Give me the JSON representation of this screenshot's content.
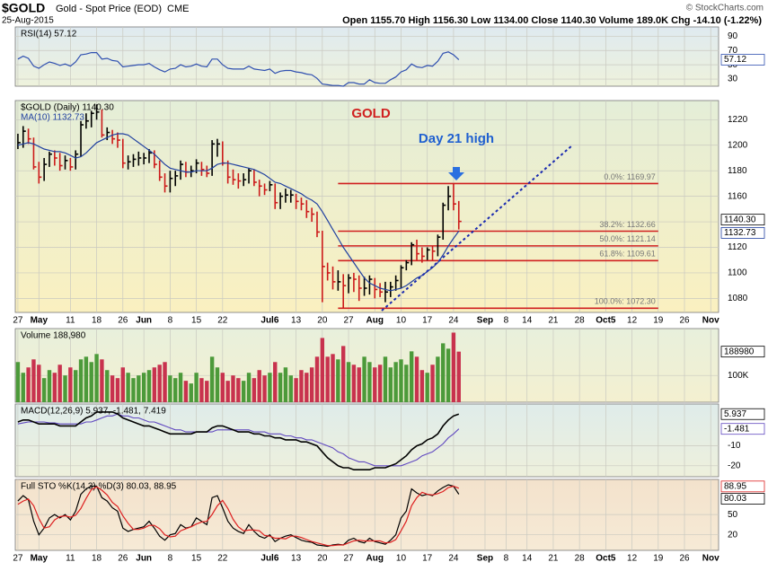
{
  "header": {
    "symbol": "$GOLD",
    "name": "Gold - Spot Price (EOD)",
    "exchange": "CME",
    "date": "25-Aug-2015",
    "quote": "Open 1155.70  High 1156.30  Low 1134.00  Close 1140.30  Volume 189.0K  Chg -14.10 (-1.22%)",
    "credit": "© StockCharts.com"
  },
  "chart_data": [
    {
      "type": "line",
      "legend": "RSI(14) 57.12",
      "last_label": "57.12",
      "color": "#3050b0",
      "ylim": [
        20,
        103
      ],
      "yticks": [
        30,
        50,
        70,
        90
      ],
      "values": [
        58,
        62,
        59,
        48,
        45,
        50,
        54,
        52,
        49,
        51,
        48,
        54,
        64,
        65,
        67,
        67,
        58,
        59,
        56,
        55,
        47,
        48,
        49,
        50,
        50,
        52,
        47,
        43,
        40,
        44,
        45,
        50,
        47,
        48,
        51,
        48,
        47,
        58,
        58,
        50,
        45,
        44,
        44,
        44,
        48,
        44,
        43,
        42,
        44,
        38,
        41,
        42,
        42,
        40,
        39,
        37,
        36,
        31,
        23,
        22,
        21,
        21,
        20,
        25,
        25,
        23,
        23,
        29,
        25,
        24,
        24,
        29,
        33,
        40,
        43,
        51,
        47,
        46,
        49,
        48,
        55,
        66,
        68,
        64,
        57.12
      ]
    },
    {
      "type": "ohlc",
      "legend": "$GOLD (Daily) 1140.30",
      "last_label": "1140.30",
      "up_color": "#000000",
      "down_color": "#cc1a1a",
      "annotations": [
        "GOLD",
        "Day 21 high"
      ],
      "xlim": [
        -0.5,
        133.5
      ],
      "xticks": [
        {
          "value": 0,
          "label": "27"
        },
        {
          "value": 4,
          "label": "May"
        },
        {
          "value": 10,
          "label": "11"
        },
        {
          "value": 15,
          "label": "18"
        },
        {
          "value": 20,
          "label": "26"
        },
        {
          "value": 24,
          "label": "Jun"
        },
        {
          "value": 29,
          "label": "8"
        },
        {
          "value": 34,
          "label": "15"
        },
        {
          "value": 39,
          "label": "22"
        },
        {
          "value": 48,
          "label": "Jul6"
        },
        {
          "value": 53,
          "label": "13"
        },
        {
          "value": 58,
          "label": "20"
        },
        {
          "value": 63,
          "label": "27"
        },
        {
          "value": 68,
          "label": "Aug"
        },
        {
          "value": 73,
          "label": "10"
        },
        {
          "value": 78,
          "label": "17"
        },
        {
          "value": 83,
          "label": "24"
        },
        {
          "value": 89,
          "label": "Sep"
        },
        {
          "value": 93,
          "label": "8"
        },
        {
          "value": 97,
          "label": "14"
        },
        {
          "value": 102,
          "label": "21"
        },
        {
          "value": 107,
          "label": "28"
        },
        {
          "value": 112,
          "label": "Oct5"
        },
        {
          "value": 117,
          "label": "12"
        },
        {
          "value": 122,
          "label": "19"
        },
        {
          "value": 127,
          "label": "26"
        },
        {
          "value": 132,
          "label": "Nov"
        }
      ],
      "ylim": [
        1069,
        1235
      ],
      "yticks": [
        1080,
        1100,
        1120,
        1140,
        1160,
        1180,
        1200,
        1220
      ],
      "fib": [
        {
          "value": 1169.97,
          "label": "0.0%: 1169.97"
        },
        {
          "value": 1132.66,
          "label": "38.2%: 1132.66"
        },
        {
          "value": 1121.14,
          "label": "50.0%: 1121.14"
        },
        {
          "value": 1109.61,
          "label": "61.8%: 1109.61"
        },
        {
          "value": 1072.3,
          "label": "100.0%: 1072.30"
        }
      ],
      "fib_color": "#d02020",
      "high": [
        1209,
        1215,
        1213,
        1206,
        1187,
        1190,
        1195,
        1196,
        1194,
        1192,
        1190,
        1196,
        1219,
        1225,
        1227,
        1232,
        1228,
        1214,
        1212,
        1210,
        1205,
        1192,
        1193,
        1195,
        1194,
        1197,
        1196,
        1188,
        1178,
        1180,
        1180,
        1188,
        1187,
        1184,
        1189,
        1187,
        1184,
        1204,
        1205,
        1203,
        1188,
        1181,
        1178,
        1178,
        1182,
        1181,
        1173,
        1170,
        1172,
        1170,
        1163,
        1166,
        1165,
        1162,
        1159,
        1157,
        1151,
        1148,
        1133,
        1108,
        1105,
        1102,
        1099,
        1099,
        1100,
        1098,
        1097,
        1098,
        1096,
        1092,
        1093,
        1093,
        1098,
        1106,
        1110,
        1124,
        1126,
        1120,
        1120,
        1121,
        1130,
        1155,
        1168,
        1169.97,
        1156.3
      ],
      "low": [
        1197,
        1198,
        1201,
        1181,
        1170,
        1172,
        1183,
        1184,
        1180,
        1181,
        1180,
        1181,
        1191,
        1213,
        1214,
        1220,
        1206,
        1204,
        1201,
        1198,
        1182,
        1181,
        1183,
        1184,
        1185,
        1186,
        1182,
        1172,
        1163,
        1163,
        1168,
        1173,
        1175,
        1175,
        1178,
        1176,
        1175,
        1176,
        1191,
        1184,
        1170,
        1169,
        1166,
        1168,
        1170,
        1168,
        1160,
        1161,
        1164,
        1150,
        1150,
        1155,
        1155,
        1150,
        1149,
        1143,
        1140,
        1128,
        1077,
        1094,
        1087,
        1086,
        1072.3,
        1084,
        1085,
        1078,
        1082,
        1083,
        1080,
        1081,
        1077,
        1081,
        1086,
        1088,
        1102,
        1106,
        1110,
        1108,
        1110,
        1110,
        1113,
        1126,
        1149,
        1149,
        1134
      ],
      "close": [
        1202,
        1211,
        1205,
        1183,
        1175,
        1185,
        1193,
        1190,
        1184,
        1188,
        1183,
        1193,
        1216,
        1219,
        1225,
        1226,
        1208,
        1210,
        1205,
        1204,
        1186,
        1187,
        1189,
        1190,
        1190,
        1194,
        1185,
        1175,
        1168,
        1174,
        1176,
        1185,
        1179,
        1180,
        1186,
        1181,
        1178,
        1201,
        1201,
        1186,
        1175,
        1173,
        1172,
        1173,
        1180,
        1171,
        1168,
        1165,
        1169,
        1155,
        1160,
        1161,
        1161,
        1156,
        1154,
        1148,
        1146,
        1132,
        1105,
        1100,
        1093,
        1093,
        1090,
        1096,
        1095,
        1088,
        1088,
        1095,
        1087,
        1085,
        1085,
        1089,
        1094,
        1104,
        1108,
        1122,
        1115,
        1113,
        1118,
        1117,
        1128,
        1153,
        1160,
        1154,
        1140.3
      ],
      "ma": {
        "legend": "MA(10) 1132.73",
        "last_label": "1132.73",
        "color": "#2040a0",
        "values": [
          1200,
          1201,
          1202,
          1201,
          1199,
          1197,
          1196,
          1195,
          1195,
          1194,
          1192,
          1190,
          1191,
          1194,
          1198,
          1202,
          1204,
          1206,
          1208,
          1209,
          1209,
          1208,
          1205,
          1202,
          1199,
          1196,
          1193,
          1189,
          1185,
          1182,
          1181,
          1180,
          1179,
          1179,
          1180,
          1180,
          1180,
          1182,
          1185,
          1186,
          1186,
          1185,
          1184,
          1183,
          1182,
          1181,
          1179,
          1177,
          1174,
          1171,
          1170,
          1168,
          1166,
          1164,
          1162,
          1159,
          1157,
          1154,
          1148,
          1141,
          1134,
          1127,
          1120,
          1114,
          1108,
          1102,
          1096,
          1092,
          1090,
          1088,
          1087,
          1086,
          1087,
          1088,
          1090,
          1093,
          1096,
          1098,
          1101,
          1104,
          1108,
          1114,
          1121,
          1127,
          1132.73
        ]
      }
    },
    {
      "type": "bar",
      "legend": "Volume 188,980",
      "last_label": "188980",
      "up_color": "#4c9a3a",
      "down_color": "#c8324e",
      "ylim": [
        0,
        275000
      ],
      "yticks": [
        {
          "value": 100000,
          "label": "100K"
        }
      ],
      "values": [
        150000,
        110000,
        130000,
        160000,
        140000,
        90000,
        120000,
        110000,
        140000,
        100000,
        130000,
        120000,
        160000,
        170000,
        150000,
        180000,
        160000,
        120000,
        100000,
        90000,
        130000,
        110000,
        90000,
        100000,
        110000,
        120000,
        130000,
        140000,
        150000,
        100000,
        90000,
        110000,
        80000,
        70000,
        110000,
        90000,
        80000,
        170000,
        130000,
        110000,
        80000,
        100000,
        90000,
        80000,
        110000,
        90000,
        120000,
        100000,
        110000,
        150000,
        110000,
        130000,
        100000,
        90000,
        120000,
        110000,
        130000,
        170000,
        240000,
        170000,
        180000,
        160000,
        210000,
        150000,
        140000,
        130000,
        170000,
        150000,
        130000,
        140000,
        170000,
        130000,
        150000,
        160000,
        140000,
        190000,
        170000,
        120000,
        110000,
        140000,
        170000,
        220000,
        200000,
        260000,
        188980
      ]
    },
    {
      "type": "macd",
      "legend": "MACD(12,26,9) 5.937, -1.481, 7.419",
      "ylim": [
        -25.5,
        11
      ],
      "yticks": [
        -20,
        -10
      ],
      "macd": {
        "color": "#000000",
        "last_label": "5.937",
        "values": [
          2,
          3,
          3,
          2,
          1,
          1,
          1,
          1,
          0,
          0,
          0,
          0,
          2,
          4,
          5,
          7,
          7,
          7,
          7,
          6,
          4,
          3,
          2,
          1,
          0,
          0,
          -1,
          -2,
          -3,
          -4,
          -4,
          -4,
          -4,
          -4,
          -3,
          -3,
          -3,
          -1,
          0,
          0,
          -1,
          -2,
          -3,
          -3,
          -3,
          -4,
          -4,
          -5,
          -5,
          -6,
          -6,
          -7,
          -7,
          -7,
          -8,
          -8,
          -9,
          -10,
          -13,
          -16,
          -18,
          -20,
          -21,
          -21,
          -22,
          -22,
          -22,
          -22,
          -21,
          -21,
          -21,
          -20,
          -19,
          -17,
          -15,
          -12,
          -10,
          -9,
          -7,
          -6,
          -4,
          0,
          3,
          5,
          5.937
        ]
      },
      "signal": {
        "color": "#6048c0",
        "last_label": "-1.481",
        "values": [
          1,
          1.5,
          2,
          2,
          2,
          2,
          1.5,
          1.5,
          1,
          1,
          1,
          1,
          1,
          2,
          2,
          3,
          4,
          5,
          5,
          6,
          5,
          5,
          4,
          4,
          3,
          2,
          2,
          1,
          0,
          -1,
          -2,
          -2,
          -3,
          -3,
          -3,
          -3,
          -3,
          -3,
          -2,
          -2,
          -2,
          -2,
          -2,
          -2,
          -2,
          -3,
          -3,
          -3,
          -4,
          -4,
          -4,
          -5,
          -5,
          -6,
          -6,
          -7,
          -7,
          -8,
          -9,
          -10,
          -11,
          -13,
          -14,
          -16,
          -17,
          -18,
          -18,
          -19,
          -20,
          -20,
          -20,
          -20,
          -20,
          -20,
          -19,
          -18,
          -17,
          -15,
          -14,
          -13,
          -11,
          -9,
          -6,
          -4,
          -1.481
        ]
      },
      "histogram": {
        "color": "#8fbf7a",
        "values": [
          1,
          1.5,
          1,
          0,
          -1,
          -1,
          -0.5,
          -0.5,
          -1,
          -1,
          -1,
          -1,
          1,
          2,
          3,
          4,
          3,
          2,
          2,
          0,
          -1,
          -2,
          -2,
          -3,
          -3,
          -2,
          -3,
          -3,
          -3,
          -3,
          -2,
          -2,
          -1,
          -1,
          0,
          0,
          0,
          2,
          2,
          2,
          1,
          0,
          -1,
          -1,
          -1,
          -1,
          -1,
          -2,
          -1,
          -2,
          -2,
          -2,
          -2,
          -1,
          -2,
          -1,
          -2,
          -2,
          -4,
          -6,
          -7,
          -7,
          -7,
          -5,
          -5,
          -4,
          -4,
          -3,
          -1,
          -1,
          -1,
          0,
          1,
          3,
          4,
          6,
          7,
          6,
          7,
          7,
          7,
          9,
          9,
          9,
          7.419
        ]
      }
    },
    {
      "type": "sto",
      "legend": "Full STO %K(14,3) %D(3) 80.03, 88.95",
      "ylim": [
        -3,
        102
      ],
      "yticks": [
        20,
        50
      ],
      "k": {
        "color": "#000000",
        "last_label": "80.03",
        "values": [
          70,
          78,
          72,
          40,
          20,
          30,
          45,
          50,
          45,
          50,
          42,
          55,
          80,
          88,
          92,
          92,
          75,
          70,
          60,
          55,
          30,
          25,
          28,
          30,
          32,
          40,
          30,
          18,
          12,
          20,
          22,
          35,
          30,
          32,
          45,
          40,
          35,
          75,
          78,
          60,
          40,
          30,
          25,
          22,
          35,
          25,
          18,
          15,
          20,
          10,
          15,
          18,
          20,
          16,
          12,
          10,
          9,
          5,
          4,
          3,
          5,
          6,
          5,
          12,
          15,
          10,
          8,
          15,
          10,
          8,
          6,
          12,
          20,
          45,
          55,
          88,
          82,
          78,
          80,
          78,
          85,
          90,
          94,
          92,
          80.03
        ]
      },
      "d": {
        "color": "#dd2020",
        "last_label": "88.95",
        "values": [
          65,
          70,
          73,
          63,
          44,
          30,
          32,
          42,
          47,
          48,
          46,
          49,
          59,
          74,
          87,
          91,
          86,
          79,
          68,
          62,
          48,
          37,
          28,
          28,
          30,
          34,
          34,
          29,
          20,
          17,
          18,
          26,
          29,
          32,
          36,
          39,
          40,
          50,
          63,
          71,
          59,
          43,
          32,
          26,
          27,
          27,
          26,
          19,
          18,
          15,
          15,
          14,
          18,
          18,
          16,
          13,
          10,
          8,
          6,
          4,
          4,
          5,
          5,
          8,
          11,
          12,
          11,
          11,
          11,
          11,
          8,
          9,
          13,
          26,
          40,
          63,
          75,
          83,
          80,
          79,
          81,
          84,
          90,
          92,
          88.95
        ]
      }
    }
  ]
}
